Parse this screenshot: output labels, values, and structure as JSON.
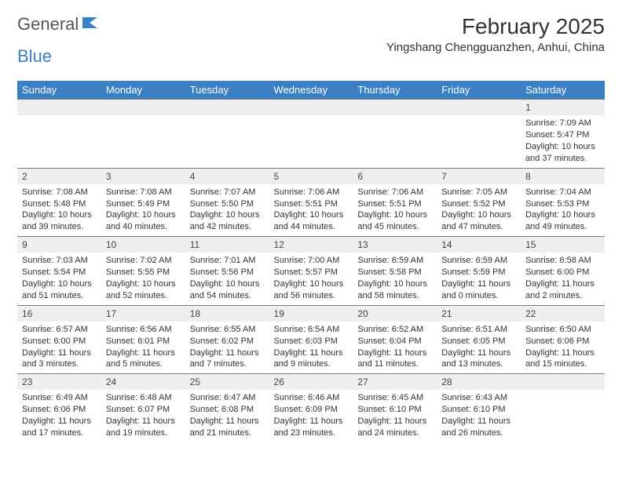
{
  "logo": {
    "text1": "General",
    "text2": "Blue"
  },
  "title": "February 2025",
  "location": "Yingshang Chengguanzhen, Anhui, China",
  "colors": {
    "header_bg": "#3b7fc4",
    "header_text": "#ffffff",
    "daynum_bg": "#efefef",
    "daynum_border": "#7a7a7a",
    "body_bg": "#ffffff",
    "text": "#333333"
  },
  "day_headers": [
    "Sunday",
    "Monday",
    "Tuesday",
    "Wednesday",
    "Thursday",
    "Friday",
    "Saturday"
  ],
  "weeks": [
    [
      null,
      null,
      null,
      null,
      null,
      null,
      {
        "n": "1",
        "sr": "7:09 AM",
        "ss": "5:47 PM",
        "dl": "10 hours and 37 minutes."
      }
    ],
    [
      {
        "n": "2",
        "sr": "7:08 AM",
        "ss": "5:48 PM",
        "dl": "10 hours and 39 minutes."
      },
      {
        "n": "3",
        "sr": "7:08 AM",
        "ss": "5:49 PM",
        "dl": "10 hours and 40 minutes."
      },
      {
        "n": "4",
        "sr": "7:07 AM",
        "ss": "5:50 PM",
        "dl": "10 hours and 42 minutes."
      },
      {
        "n": "5",
        "sr": "7:06 AM",
        "ss": "5:51 PM",
        "dl": "10 hours and 44 minutes."
      },
      {
        "n": "6",
        "sr": "7:06 AM",
        "ss": "5:51 PM",
        "dl": "10 hours and 45 minutes."
      },
      {
        "n": "7",
        "sr": "7:05 AM",
        "ss": "5:52 PM",
        "dl": "10 hours and 47 minutes."
      },
      {
        "n": "8",
        "sr": "7:04 AM",
        "ss": "5:53 PM",
        "dl": "10 hours and 49 minutes."
      }
    ],
    [
      {
        "n": "9",
        "sr": "7:03 AM",
        "ss": "5:54 PM",
        "dl": "10 hours and 51 minutes."
      },
      {
        "n": "10",
        "sr": "7:02 AM",
        "ss": "5:55 PM",
        "dl": "10 hours and 52 minutes."
      },
      {
        "n": "11",
        "sr": "7:01 AM",
        "ss": "5:56 PM",
        "dl": "10 hours and 54 minutes."
      },
      {
        "n": "12",
        "sr": "7:00 AM",
        "ss": "5:57 PM",
        "dl": "10 hours and 56 minutes."
      },
      {
        "n": "13",
        "sr": "6:59 AM",
        "ss": "5:58 PM",
        "dl": "10 hours and 58 minutes."
      },
      {
        "n": "14",
        "sr": "6:59 AM",
        "ss": "5:59 PM",
        "dl": "11 hours and 0 minutes."
      },
      {
        "n": "15",
        "sr": "6:58 AM",
        "ss": "6:00 PM",
        "dl": "11 hours and 2 minutes."
      }
    ],
    [
      {
        "n": "16",
        "sr": "6:57 AM",
        "ss": "6:00 PM",
        "dl": "11 hours and 3 minutes."
      },
      {
        "n": "17",
        "sr": "6:56 AM",
        "ss": "6:01 PM",
        "dl": "11 hours and 5 minutes."
      },
      {
        "n": "18",
        "sr": "6:55 AM",
        "ss": "6:02 PM",
        "dl": "11 hours and 7 minutes."
      },
      {
        "n": "19",
        "sr": "6:54 AM",
        "ss": "6:03 PM",
        "dl": "11 hours and 9 minutes."
      },
      {
        "n": "20",
        "sr": "6:52 AM",
        "ss": "6:04 PM",
        "dl": "11 hours and 11 minutes."
      },
      {
        "n": "21",
        "sr": "6:51 AM",
        "ss": "6:05 PM",
        "dl": "11 hours and 13 minutes."
      },
      {
        "n": "22",
        "sr": "6:50 AM",
        "ss": "6:06 PM",
        "dl": "11 hours and 15 minutes."
      }
    ],
    [
      {
        "n": "23",
        "sr": "6:49 AM",
        "ss": "6:06 PM",
        "dl": "11 hours and 17 minutes."
      },
      {
        "n": "24",
        "sr": "6:48 AM",
        "ss": "6:07 PM",
        "dl": "11 hours and 19 minutes."
      },
      {
        "n": "25",
        "sr": "6:47 AM",
        "ss": "6:08 PM",
        "dl": "11 hours and 21 minutes."
      },
      {
        "n": "26",
        "sr": "6:46 AM",
        "ss": "6:09 PM",
        "dl": "11 hours and 23 minutes."
      },
      {
        "n": "27",
        "sr": "6:45 AM",
        "ss": "6:10 PM",
        "dl": "11 hours and 24 minutes."
      },
      {
        "n": "28",
        "sr": "6:43 AM",
        "ss": "6:10 PM",
        "dl": "11 hours and 26 minutes."
      },
      null
    ]
  ],
  "labels": {
    "sunrise": "Sunrise:",
    "sunset": "Sunset:",
    "daylight": "Daylight:"
  }
}
